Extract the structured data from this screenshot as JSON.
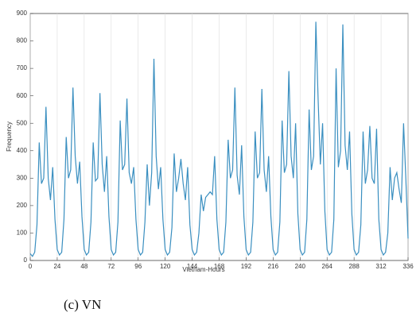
{
  "chart_data": {
    "type": "line",
    "caption": "(c) VN",
    "xlabel": "Vietnam-Hours",
    "ylabel": "Frequency",
    "xlim": [
      0,
      336
    ],
    "ylim": [
      0,
      900
    ],
    "xticks": [
      0,
      24,
      48,
      72,
      96,
      120,
      144,
      168,
      192,
      216,
      240,
      264,
      288,
      312,
      336
    ],
    "yticks": [
      0,
      100,
      200,
      300,
      400,
      500,
      600,
      700,
      800,
      900
    ],
    "grid": true,
    "x": [
      0,
      2,
      4,
      6,
      8,
      10,
      12,
      14,
      16,
      18,
      20,
      22,
      24,
      26,
      28,
      30,
      32,
      34,
      36,
      38,
      40,
      42,
      44,
      46,
      48,
      50,
      52,
      54,
      56,
      58,
      60,
      62,
      64,
      66,
      68,
      70,
      72,
      74,
      76,
      78,
      80,
      82,
      84,
      86,
      88,
      90,
      92,
      94,
      96,
      98,
      100,
      102,
      104,
      106,
      108,
      110,
      112,
      114,
      116,
      118,
      120,
      122,
      124,
      126,
      128,
      130,
      132,
      134,
      136,
      138,
      140,
      142,
      144,
      146,
      148,
      150,
      152,
      154,
      156,
      158,
      160,
      162,
      164,
      166,
      168,
      170,
      172,
      174,
      176,
      178,
      180,
      182,
      184,
      186,
      188,
      190,
      192,
      194,
      196,
      198,
      200,
      202,
      204,
      206,
      208,
      210,
      212,
      214,
      216,
      218,
      220,
      222,
      224,
      226,
      228,
      230,
      232,
      234,
      236,
      238,
      240,
      242,
      244,
      246,
      248,
      250,
      252,
      254,
      256,
      258,
      260,
      262,
      264,
      266,
      268,
      270,
      272,
      274,
      276,
      278,
      280,
      282,
      284,
      286,
      288,
      290,
      292,
      294,
      296,
      298,
      300,
      302,
      304,
      306,
      308,
      310,
      312,
      314,
      316,
      318,
      320,
      322,
      324,
      326,
      328,
      330,
      332,
      334,
      336
    ],
    "series": [
      {
        "name": "VN",
        "color": "#3a8fc0",
        "values": [
          25,
          15,
          30,
          130,
          430,
          280,
          300,
          560,
          300,
          220,
          340,
          150,
          40,
          20,
          30,
          150,
          450,
          300,
          330,
          630,
          380,
          280,
          360,
          160,
          40,
          20,
          30,
          140,
          430,
          290,
          300,
          610,
          350,
          250,
          380,
          160,
          40,
          20,
          30,
          140,
          510,
          330,
          350,
          590,
          320,
          280,
          340,
          150,
          40,
          20,
          30,
          140,
          350,
          200,
          320,
          735,
          380,
          260,
          340,
          150,
          40,
          20,
          30,
          120,
          390,
          250,
          300,
          370,
          280,
          220,
          340,
          130,
          40,
          20,
          30,
          100,
          240,
          180,
          230,
          240,
          250,
          240,
          380,
          150,
          40,
          20,
          30,
          140,
          440,
          300,
          330,
          630,
          310,
          240,
          420,
          160,
          40,
          20,
          30,
          140,
          470,
          300,
          320,
          625,
          330,
          250,
          380,
          160,
          40,
          20,
          30,
          140,
          510,
          320,
          350,
          690,
          380,
          300,
          500,
          170,
          40,
          20,
          30,
          150,
          550,
          330,
          380,
          870,
          590,
          350,
          500,
          180,
          40,
          20,
          30,
          150,
          700,
          340,
          400,
          860,
          420,
          330,
          470,
          170,
          40,
          20,
          30,
          130,
          470,
          280,
          330,
          490,
          300,
          280,
          480,
          150,
          40,
          20,
          30,
          100,
          340,
          220,
          300,
          320,
          260,
          210,
          500,
          300,
          80
        ]
      }
    ]
  }
}
